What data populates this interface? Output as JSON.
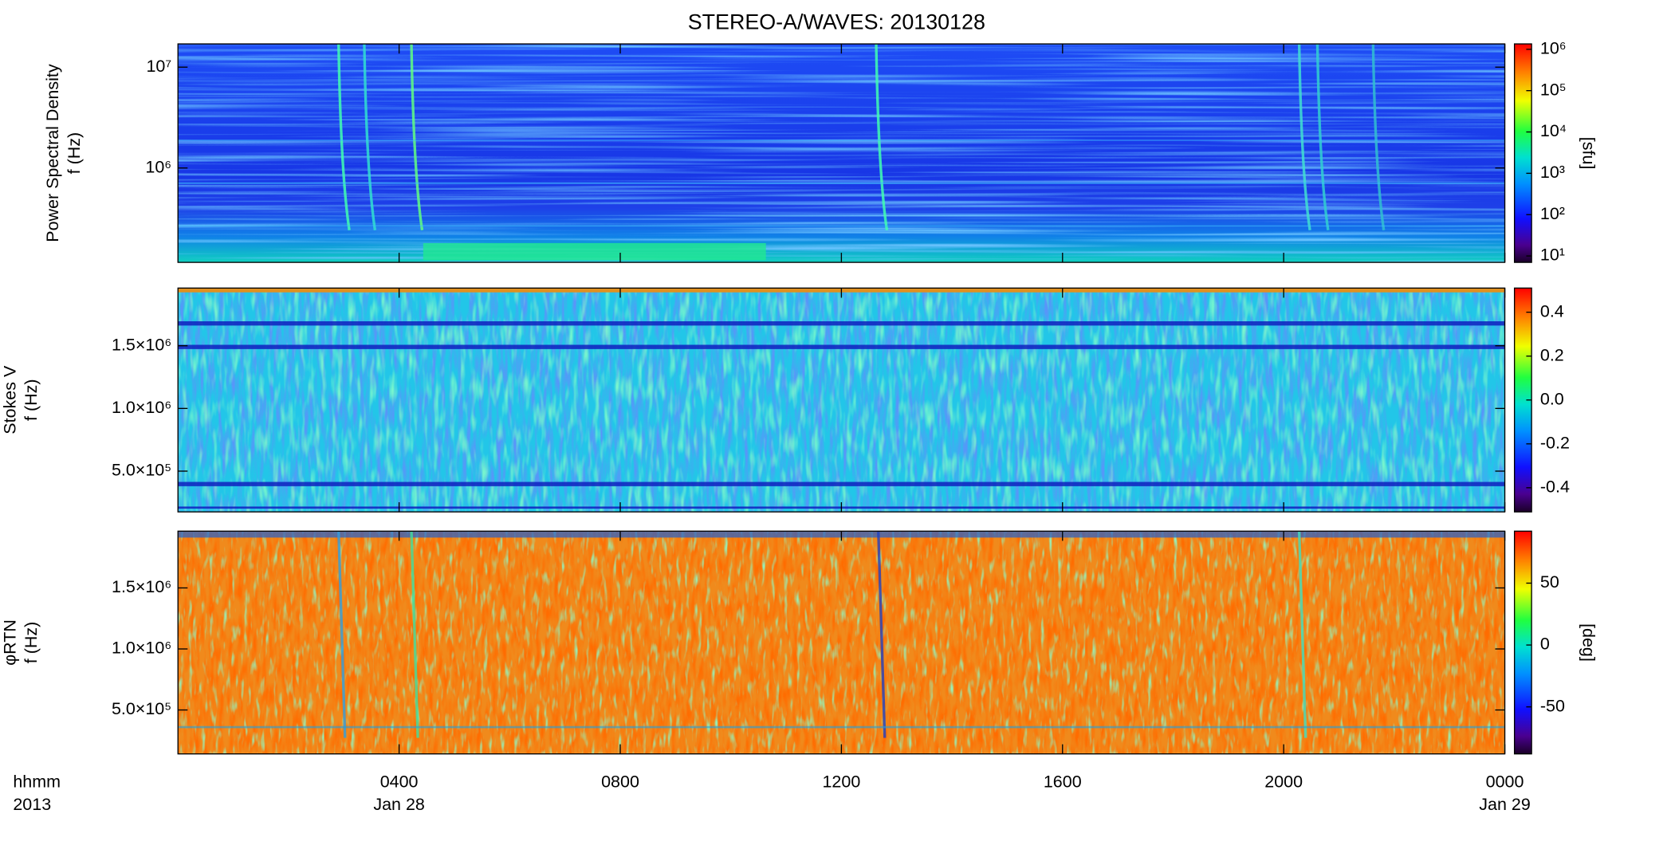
{
  "title": "STEREO-A/WAVES: 20130128",
  "x_axis": {
    "xlim": [
      0,
      24
    ],
    "xticks": [
      {
        "value": 4,
        "label": "0400"
      },
      {
        "value": 8,
        "label": "0800"
      },
      {
        "value": 12,
        "label": "1200"
      },
      {
        "value": 16,
        "label": "1600"
      },
      {
        "value": 20,
        "label": "2000"
      },
      {
        "value": 24,
        "label": "0000"
      }
    ],
    "date_labels": [
      {
        "value": 4,
        "label": "Jan 28"
      },
      {
        "value": 24,
        "label": "Jan 29"
      }
    ],
    "unit_label": "hhmm",
    "year_label": "2013"
  },
  "chart_data": [
    {
      "type": "heatmap",
      "ylabel": [
        "Power Spectral Density",
        "f (Hz)"
      ],
      "ylog": true,
      "ylim": [
        116000,
        17000000
      ],
      "yticks": [
        {
          "value": 1000000,
          "label": "10⁶"
        },
        {
          "value": 10000000,
          "label": "10⁷"
        }
      ],
      "clog": true,
      "clim": [
        7,
        1350000
      ],
      "cticks": [
        {
          "value": 10,
          "label": "10¹"
        },
        {
          "value": 100,
          "label": "10²"
        },
        {
          "value": 1000,
          "label": "10³"
        },
        {
          "value": 10000,
          "label": "10⁴"
        },
        {
          "value": 100000,
          "label": "10⁵"
        },
        {
          "value": 1000000,
          "label": "10⁶"
        }
      ],
      "clabel": "[sfu]"
    },
    {
      "type": "heatmap",
      "ylabel": [
        "Stokes V",
        "f (Hz)"
      ],
      "ylog": false,
      "ylim": [
        175000,
        1960000
      ],
      "yticks": [
        {
          "value": 500000,
          "label": "5.0×10⁵"
        },
        {
          "value": 1000000,
          "label": "1.0×10⁶"
        },
        {
          "value": 1500000,
          "label": "1.5×10⁶"
        }
      ],
      "clog": false,
      "clim": [
        -0.51,
        0.51
      ],
      "cticks": [
        0.4,
        0.2,
        {
          "value": 0,
          "label": "0.0"
        },
        -0.2,
        -0.4
      ]
    },
    {
      "type": "heatmap",
      "ylabel": [
        "φRTN",
        "f (Hz)"
      ],
      "ylog": false,
      "ylim": [
        140000,
        1965000
      ],
      "yticks": [
        {
          "value": 500000,
          "label": "5.0×10⁵"
        },
        {
          "value": 1000000,
          "label": "1.0×10⁶"
        },
        {
          "value": 1500000,
          "label": "1.5×10⁶"
        }
      ],
      "clog": false,
      "clim": [
        -88,
        92
      ],
      "cticks": [
        50,
        0,
        -50
      ],
      "clabel": "[deg]"
    }
  ]
}
